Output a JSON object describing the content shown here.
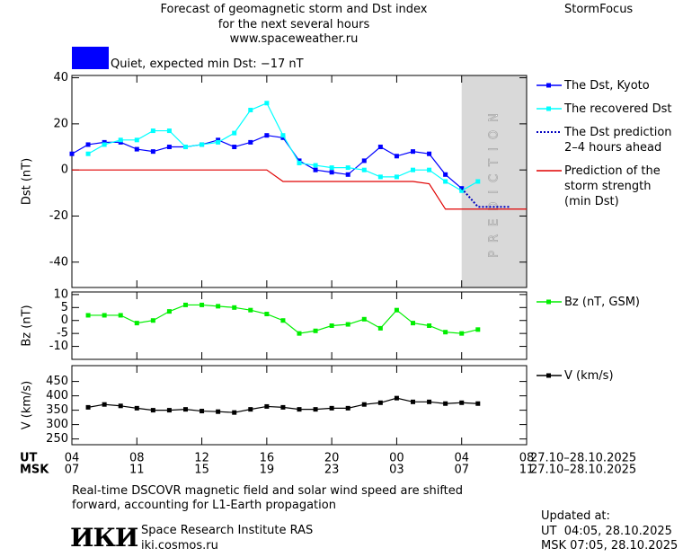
{
  "header": {
    "title_lines": [
      "Forecast of geomagnetic storm and Dst index",
      "for the next several hours",
      "www.spaceweather.ru"
    ],
    "brand": "StormFocus",
    "status": {
      "label": "Quiet, expected min Dst: −17 nT",
      "color": "#0000ff"
    }
  },
  "chart_data": [
    {
      "type": "line",
      "ylabel": "Dst (nT)",
      "x": [
        0,
        1,
        2,
        3,
        4,
        5,
        6,
        7,
        8,
        9,
        10,
        11,
        12,
        13,
        14,
        15,
        16,
        17,
        18,
        19,
        20,
        21,
        22,
        23,
        24,
        25,
        26,
        27,
        28
      ],
      "xlim": [
        0,
        28
      ],
      "xticks": [
        0,
        4,
        8,
        12,
        16,
        20,
        24,
        28
      ],
      "ylim": [
        -51,
        41
      ],
      "yticks": [
        40,
        20,
        0,
        -20,
        -40
      ],
      "shade": {
        "from": 24,
        "to": 28,
        "label": "PREDICTION",
        "color": "#d9d9d9"
      },
      "series": [
        {
          "name": "The Dst, Kyoto",
          "color": "#0000ff",
          "marker": "square",
          "dash": "solid",
          "values": [
            7,
            11,
            12,
            12,
            9,
            8,
            10,
            10,
            11,
            13,
            10,
            12,
            15,
            14,
            4,
            0,
            -1,
            -2,
            4,
            10,
            6,
            8,
            7,
            -2,
            -8,
            null,
            null,
            null,
            null
          ]
        },
        {
          "name": "The recovered Dst",
          "color": "#00ffff",
          "marker": "square",
          "dash": "solid",
          "values": [
            null,
            7,
            11,
            13,
            13,
            17,
            17,
            10,
            11,
            12,
            16,
            26,
            29,
            15,
            3,
            2,
            1,
            1,
            0,
            -3,
            -3,
            0,
            0,
            -5,
            -9,
            -5,
            null,
            null,
            null
          ]
        },
        {
          "name": "The Dst prediction\n2–4 hours ahead",
          "color": "#0000c0",
          "marker": "none",
          "dash": "dotted",
          "values": [
            null,
            null,
            null,
            null,
            null,
            null,
            null,
            null,
            null,
            null,
            null,
            null,
            null,
            null,
            null,
            null,
            null,
            null,
            null,
            null,
            null,
            null,
            null,
            null,
            -8,
            -16,
            -16,
            -16,
            null
          ]
        },
        {
          "name": "Prediction of the\nstorm strength\n(min Dst)",
          "color": "#e00000",
          "marker": "none",
          "dash": "solid",
          "values": [
            0,
            0,
            0,
            0,
            0,
            0,
            0,
            0,
            0,
            0,
            0,
            0,
            0,
            -5,
            -5,
            -5,
            -5,
            -5,
            -5,
            -5,
            -5,
            -5,
            -6,
            -17,
            -17,
            -17,
            -17,
            -17,
            -17
          ]
        }
      ]
    },
    {
      "type": "line",
      "ylabel": "Bz (nT)",
      "x": [
        1,
        2,
        3,
        4,
        5,
        6,
        7,
        8,
        9,
        10,
        11,
        12,
        13,
        14,
        15,
        16,
        17,
        18,
        19,
        20,
        21,
        22,
        23,
        24,
        25
      ],
      "xlim": [
        0,
        28
      ],
      "xticks": [
        0,
        4,
        8,
        12,
        16,
        20,
        24,
        28
      ],
      "ylim": [
        -15,
        11
      ],
      "yticks": [
        10,
        5,
        0,
        -5,
        -10
      ],
      "series": [
        {
          "name": "Bz (nT, GSM)",
          "color": "#00ee00",
          "marker": "square",
          "dash": "solid",
          "values": [
            2,
            2,
            2,
            -1,
            0,
            3.5,
            6,
            6,
            5.5,
            5,
            4,
            2.5,
            0,
            -5,
            -4,
            -2,
            -1.5,
            0.5,
            -3,
            4,
            -1,
            -2,
            -4.5,
            -5,
            -3.5
          ]
        }
      ]
    },
    {
      "type": "line",
      "ylabel": "V (km/s)",
      "x": [
        1,
        2,
        3,
        4,
        5,
        6,
        7,
        8,
        9,
        10,
        11,
        12,
        13,
        14,
        15,
        16,
        17,
        18,
        19,
        20,
        21,
        22,
        23,
        24,
        25
      ],
      "xlim": [
        0,
        28
      ],
      "xticks": [
        0,
        4,
        8,
        12,
        16,
        20,
        24,
        28
      ],
      "ylim": [
        230,
        505
      ],
      "yticks": [
        450,
        400,
        350,
        300,
        250
      ],
      "x_rows": [
        {
          "name": "UT",
          "labels": [
            "04",
            "08",
            "12",
            "16",
            "20",
            "00",
            "04",
            "08"
          ],
          "range": "27.10–28.10.2025"
        },
        {
          "name": "MSK",
          "labels": [
            "07",
            "11",
            "15",
            "19",
            "23",
            "03",
            "07",
            "11"
          ],
          "range": "27.10–28.10.2025"
        }
      ],
      "series": [
        {
          "name": "V (km/s)",
          "color": "#000000",
          "marker": "square",
          "dash": "solid",
          "values": [
            360,
            370,
            365,
            357,
            350,
            350,
            353,
            347,
            345,
            342,
            353,
            363,
            360,
            353,
            353,
            357,
            357,
            370,
            376,
            392,
            379,
            379,
            373,
            376,
            373
          ]
        }
      ]
    }
  ],
  "footer": {
    "note": "Real-time DSCOVR magnetic field and solar wind speed are shifted\nforward, accounting for L1-Earth propagation",
    "logo": "ИКИ",
    "institute": "Space Research Institute RAS",
    "url": "iki.cosmos.ru",
    "updated_label": "Updated at:",
    "updated_ut": "UT  04:05, 28.10.2025",
    "updated_msk": "MSK 07:05, 28.10.2025"
  }
}
